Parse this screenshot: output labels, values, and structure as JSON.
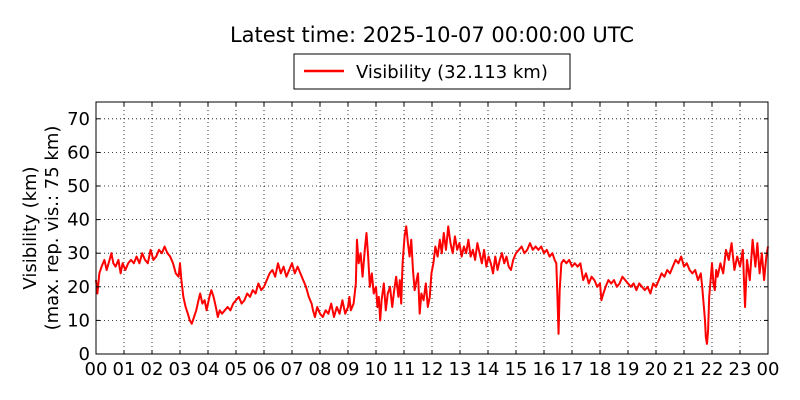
{
  "chart_data": {
    "type": "line",
    "title": "Latest time: 2025-10-07 00:00:00 UTC",
    "ylabel_line1": "Visibility (km)",
    "ylabel_line2": "(max. rep. vis.: 75 km)",
    "xlim": [
      0,
      24
    ],
    "ylim": [
      0,
      75
    ],
    "x_tick_labels": [
      "00",
      "01",
      "02",
      "03",
      "04",
      "05",
      "06",
      "07",
      "08",
      "09",
      "10",
      "11",
      "12",
      "13",
      "14",
      "15",
      "16",
      "17",
      "18",
      "19",
      "20",
      "21",
      "22",
      "23",
      "00"
    ],
    "y_tick_labels": [
      "0",
      "10",
      "20",
      "30",
      "40",
      "50",
      "60",
      "70"
    ],
    "y_ticks": [
      0,
      10,
      20,
      30,
      40,
      50,
      60,
      70
    ],
    "grid": true,
    "legend_position": "top-center",
    "series": [
      {
        "name": "Visibility (32.113 km)",
        "color": "#ff0000",
        "points": [
          [
            0.0,
            22
          ],
          [
            0.05,
            18
          ],
          [
            0.12,
            24
          ],
          [
            0.2,
            26
          ],
          [
            0.3,
            28
          ],
          [
            0.38,
            25
          ],
          [
            0.45,
            27
          ],
          [
            0.55,
            30
          ],
          [
            0.62,
            27
          ],
          [
            0.7,
            26
          ],
          [
            0.8,
            28
          ],
          [
            0.88,
            24
          ],
          [
            0.95,
            27
          ],
          [
            1.05,
            25
          ],
          [
            1.15,
            27
          ],
          [
            1.25,
            28
          ],
          [
            1.35,
            27
          ],
          [
            1.45,
            29
          ],
          [
            1.55,
            27
          ],
          [
            1.65,
            30
          ],
          [
            1.75,
            28
          ],
          [
            1.85,
            27
          ],
          [
            1.95,
            31
          ],
          [
            2.05,
            28
          ],
          [
            2.15,
            29
          ],
          [
            2.25,
            31
          ],
          [
            2.35,
            30
          ],
          [
            2.45,
            32
          ],
          [
            2.55,
            30
          ],
          [
            2.65,
            29
          ],
          [
            2.75,
            27
          ],
          [
            2.85,
            24
          ],
          [
            2.95,
            23
          ],
          [
            3.0,
            27
          ],
          [
            3.05,
            22
          ],
          [
            3.12,
            17
          ],
          [
            3.2,
            14
          ],
          [
            3.28,
            12
          ],
          [
            3.35,
            10
          ],
          [
            3.42,
            9
          ],
          [
            3.5,
            11
          ],
          [
            3.58,
            13
          ],
          [
            3.66,
            16
          ],
          [
            3.72,
            18
          ],
          [
            3.8,
            15
          ],
          [
            3.88,
            16
          ],
          [
            3.95,
            13
          ],
          [
            4.05,
            17
          ],
          [
            4.12,
            19
          ],
          [
            4.2,
            17
          ],
          [
            4.28,
            14
          ],
          [
            4.35,
            11
          ],
          [
            4.42,
            13
          ],
          [
            4.5,
            12
          ],
          [
            4.6,
            13
          ],
          [
            4.7,
            14
          ],
          [
            4.8,
            13
          ],
          [
            4.9,
            15
          ],
          [
            5.0,
            16
          ],
          [
            5.1,
            17
          ],
          [
            5.2,
            15
          ],
          [
            5.3,
            16
          ],
          [
            5.4,
            18
          ],
          [
            5.5,
            17
          ],
          [
            5.6,
            19
          ],
          [
            5.7,
            18
          ],
          [
            5.8,
            21
          ],
          [
            5.9,
            19
          ],
          [
            6.0,
            20
          ],
          [
            6.1,
            22
          ],
          [
            6.2,
            24
          ],
          [
            6.3,
            25
          ],
          [
            6.4,
            23
          ],
          [
            6.5,
            27
          ],
          [
            6.6,
            24
          ],
          [
            6.7,
            26
          ],
          [
            6.8,
            23
          ],
          [
            6.9,
            25
          ],
          [
            7.0,
            27
          ],
          [
            7.1,
            24
          ],
          [
            7.2,
            26
          ],
          [
            7.3,
            24
          ],
          [
            7.4,
            22
          ],
          [
            7.5,
            20
          ],
          [
            7.6,
            17
          ],
          [
            7.7,
            15
          ],
          [
            7.75,
            13
          ],
          [
            7.82,
            11
          ],
          [
            7.9,
            14
          ],
          [
            8.0,
            12
          ],
          [
            8.1,
            11
          ],
          [
            8.2,
            13
          ],
          [
            8.3,
            12
          ],
          [
            8.4,
            15
          ],
          [
            8.5,
            11
          ],
          [
            8.6,
            14
          ],
          [
            8.7,
            12
          ],
          [
            8.8,
            16
          ],
          [
            8.9,
            12
          ],
          [
            9.0,
            14
          ],
          [
            9.05,
            17
          ],
          [
            9.1,
            13
          ],
          [
            9.2,
            15
          ],
          [
            9.28,
            21
          ],
          [
            9.32,
            34
          ],
          [
            9.38,
            27
          ],
          [
            9.45,
            30
          ],
          [
            9.52,
            23
          ],
          [
            9.6,
            31
          ],
          [
            9.66,
            36
          ],
          [
            9.72,
            29
          ],
          [
            9.78,
            20
          ],
          [
            9.85,
            24
          ],
          [
            9.92,
            18
          ],
          [
            10.0,
            20
          ],
          [
            10.05,
            14
          ],
          [
            10.1,
            17
          ],
          [
            10.15,
            10
          ],
          [
            10.2,
            16
          ],
          [
            10.28,
            21
          ],
          [
            10.35,
            13
          ],
          [
            10.42,
            18
          ],
          [
            10.5,
            20
          ],
          [
            10.58,
            14
          ],
          [
            10.65,
            19
          ],
          [
            10.72,
            23
          ],
          [
            10.8,
            17
          ],
          [
            10.85,
            22
          ],
          [
            10.9,
            15
          ],
          [
            10.95,
            27
          ],
          [
            11.02,
            35
          ],
          [
            11.08,
            38
          ],
          [
            11.14,
            33
          ],
          [
            11.2,
            29
          ],
          [
            11.26,
            34
          ],
          [
            11.32,
            25
          ],
          [
            11.38,
            19
          ],
          [
            11.45,
            22
          ],
          [
            11.5,
            24
          ],
          [
            11.56,
            12
          ],
          [
            11.62,
            18
          ],
          [
            11.7,
            16
          ],
          [
            11.78,
            21
          ],
          [
            11.85,
            14
          ],
          [
            11.92,
            17
          ],
          [
            11.98,
            24
          ],
          [
            12.05,
            27
          ],
          [
            12.12,
            32
          ],
          [
            12.2,
            29
          ],
          [
            12.28,
            34
          ],
          [
            12.35,
            30
          ],
          [
            12.42,
            36
          ],
          [
            12.5,
            31
          ],
          [
            12.58,
            38
          ],
          [
            12.66,
            33
          ],
          [
            12.74,
            30
          ],
          [
            12.82,
            35
          ],
          [
            12.9,
            31
          ],
          [
            12.98,
            33
          ],
          [
            13.06,
            29
          ],
          [
            13.14,
            32
          ],
          [
            13.22,
            30
          ],
          [
            13.3,
            34
          ],
          [
            13.38,
            29
          ],
          [
            13.46,
            31
          ],
          [
            13.54,
            28
          ],
          [
            13.62,
            33
          ],
          [
            13.7,
            30
          ],
          [
            13.78,
            27
          ],
          [
            13.86,
            31
          ],
          [
            13.94,
            26
          ],
          [
            14.02,
            29
          ],
          [
            14.1,
            27
          ],
          [
            14.18,
            24
          ],
          [
            14.26,
            29
          ],
          [
            14.34,
            25
          ],
          [
            14.42,
            28
          ],
          [
            14.5,
            30
          ],
          [
            14.58,
            27
          ],
          [
            14.66,
            29
          ],
          [
            14.74,
            26
          ],
          [
            14.82,
            25
          ],
          [
            14.9,
            28
          ],
          [
            15.0,
            30
          ],
          [
            15.1,
            31
          ],
          [
            15.2,
            32
          ],
          [
            15.3,
            30
          ],
          [
            15.4,
            31
          ],
          [
            15.5,
            33
          ],
          [
            15.6,
            31
          ],
          [
            15.7,
            32
          ],
          [
            15.8,
            31
          ],
          [
            15.9,
            32
          ],
          [
            16.0,
            30
          ],
          [
            16.1,
            31
          ],
          [
            16.2,
            29
          ],
          [
            16.3,
            30
          ],
          [
            16.38,
            28
          ],
          [
            16.44,
            27
          ],
          [
            16.48,
            17
          ],
          [
            16.52,
            6
          ],
          [
            16.56,
            19
          ],
          [
            16.62,
            27
          ],
          [
            16.7,
            28
          ],
          [
            16.8,
            27
          ],
          [
            16.9,
            28
          ],
          [
            17.0,
            26
          ],
          [
            17.1,
            27
          ],
          [
            17.2,
            26
          ],
          [
            17.3,
            27
          ],
          [
            17.4,
            22
          ],
          [
            17.5,
            24
          ],
          [
            17.6,
            21
          ],
          [
            17.7,
            23
          ],
          [
            17.8,
            22
          ],
          [
            17.9,
            20
          ],
          [
            18.0,
            21
          ],
          [
            18.05,
            16
          ],
          [
            18.12,
            18
          ],
          [
            18.2,
            20
          ],
          [
            18.3,
            22
          ],
          [
            18.4,
            21
          ],
          [
            18.5,
            22
          ],
          [
            18.6,
            20
          ],
          [
            18.7,
            21
          ],
          [
            18.8,
            23
          ],
          [
            18.9,
            22
          ],
          [
            19.0,
            21
          ],
          [
            19.1,
            20
          ],
          [
            19.2,
            21
          ],
          [
            19.3,
            19
          ],
          [
            19.4,
            21
          ],
          [
            19.5,
            20
          ],
          [
            19.6,
            19
          ],
          [
            19.7,
            20
          ],
          [
            19.8,
            18
          ],
          [
            19.9,
            21
          ],
          [
            20.0,
            20
          ],
          [
            20.1,
            22
          ],
          [
            20.2,
            24
          ],
          [
            20.3,
            23
          ],
          [
            20.4,
            25
          ],
          [
            20.5,
            24
          ],
          [
            20.6,
            26
          ],
          [
            20.7,
            28
          ],
          [
            20.8,
            27
          ],
          [
            20.9,
            29
          ],
          [
            21.0,
            26
          ],
          [
            21.1,
            27
          ],
          [
            21.2,
            25
          ],
          [
            21.3,
            24
          ],
          [
            21.4,
            25
          ],
          [
            21.5,
            22
          ],
          [
            21.6,
            24
          ],
          [
            21.65,
            20
          ],
          [
            21.7,
            15
          ],
          [
            21.75,
            10
          ],
          [
            21.78,
            5
          ],
          [
            21.82,
            3
          ],
          [
            21.86,
            7
          ],
          [
            21.9,
            17
          ],
          [
            21.95,
            22
          ],
          [
            22.0,
            27
          ],
          [
            22.05,
            21
          ],
          [
            22.1,
            19
          ],
          [
            22.15,
            25
          ],
          [
            22.2,
            23
          ],
          [
            22.3,
            27
          ],
          [
            22.4,
            24
          ],
          [
            22.5,
            31
          ],
          [
            22.6,
            28
          ],
          [
            22.7,
            33
          ],
          [
            22.8,
            25
          ],
          [
            22.9,
            29
          ],
          [
            23.0,
            26
          ],
          [
            23.1,
            31
          ],
          [
            23.18,
            14
          ],
          [
            23.25,
            28
          ],
          [
            23.35,
            22
          ],
          [
            23.45,
            34
          ],
          [
            23.55,
            26
          ],
          [
            23.62,
            33
          ],
          [
            23.7,
            24
          ],
          [
            23.78,
            30
          ],
          [
            23.86,
            22
          ],
          [
            23.94,
            29
          ],
          [
            24.0,
            32
          ]
        ]
      }
    ]
  }
}
